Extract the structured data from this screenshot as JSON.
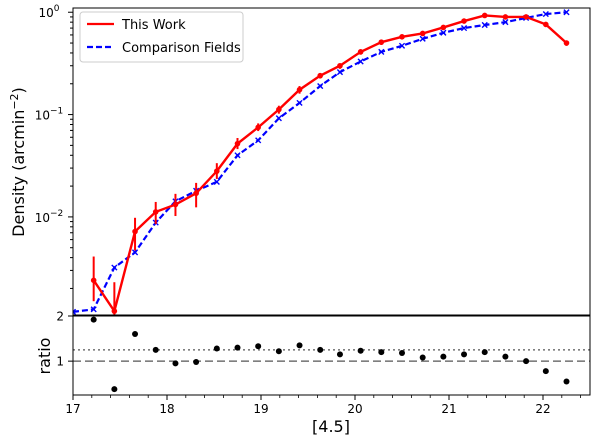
{
  "chart_data": [
    {
      "type": "line",
      "panel": "main",
      "ylabel": "Density (arcmin",
      "ylabel_sup": "−2",
      "ylabel_close": ")",
      "yscale": "log",
      "xlim": [
        17.0,
        22.5
      ],
      "ylim": [
        0.0011,
        1.1
      ],
      "yticks": [
        {
          "value": 0.01,
          "base": "10",
          "exp": "−2"
        },
        {
          "value": 0.1,
          "base": "10",
          "exp": "−1"
        },
        {
          "value": 1.0,
          "base": "10",
          "exp": "0"
        }
      ],
      "legend": {
        "position": "top-left"
      },
      "series": [
        {
          "name": "This Work",
          "color": "#ff0000",
          "linestyle": "solid",
          "marker": "dot",
          "x": [
            17.22,
            17.44,
            17.66,
            17.88,
            18.09,
            18.31,
            18.53,
            18.75,
            18.97,
            19.19,
            19.41,
            19.63,
            19.84,
            20.06,
            20.28,
            20.5,
            20.72,
            20.94,
            21.16,
            21.38,
            21.6,
            21.82,
            22.03,
            22.25
          ],
          "y": [
            0.0024,
            0.0012,
            0.0072,
            0.0112,
            0.0132,
            0.017,
            0.028,
            0.052,
            0.075,
            0.112,
            0.175,
            0.24,
            0.3,
            0.41,
            0.51,
            0.575,
            0.62,
            0.71,
            0.82,
            0.93,
            0.9,
            0.9,
            0.76,
            0.5
          ],
          "yerr_low": [
            0.0015,
            0.0011,
            0.0047,
            0.0085,
            0.0102,
            0.0124,
            0.0235,
            0.046,
            0.069,
            0.102,
            0.16,
            0.225,
            0.28,
            0.385,
            0.48,
            0.545,
            0.59,
            0.68,
            0.79,
            0.89,
            0.86,
            0.86,
            0.72,
            0.47
          ],
          "yerr_high": [
            0.0041,
            0.0023,
            0.0098,
            0.014,
            0.0168,
            0.0215,
            0.0335,
            0.059,
            0.082,
            0.122,
            0.19,
            0.255,
            0.315,
            0.43,
            0.535,
            0.6,
            0.65,
            0.74,
            0.85,
            0.96,
            0.94,
            0.94,
            0.8,
            0.53
          ]
        },
        {
          "name": "Comparison Fields",
          "color": "#0000ff",
          "linestyle": "dashed",
          "marker": "x",
          "x": [
            17.0,
            17.22,
            17.44,
            17.66,
            17.88,
            18.09,
            18.31,
            18.53,
            18.75,
            18.97,
            19.19,
            19.41,
            19.63,
            19.84,
            20.06,
            20.28,
            20.5,
            20.72,
            20.94,
            21.16,
            21.38,
            21.6,
            21.82,
            22.03,
            22.25
          ],
          "y": [
            0.00118,
            0.00125,
            0.0032,
            0.0045,
            0.0088,
            0.0142,
            0.018,
            0.022,
            0.04,
            0.056,
            0.092,
            0.13,
            0.19,
            0.26,
            0.33,
            0.41,
            0.47,
            0.55,
            0.63,
            0.7,
            0.75,
            0.8,
            0.88,
            0.96,
            1.0
          ]
        }
      ]
    },
    {
      "type": "scatter",
      "panel": "ratio",
      "ylabel": "ratio",
      "xlabel": "[4.5]",
      "xlim": [
        17.0,
        22.5
      ],
      "ylim": [
        0.25,
        2.0
      ],
      "xticks": [
        "17",
        "18",
        "19",
        "20",
        "21",
        "22"
      ],
      "yticks": [
        "1",
        "2"
      ],
      "reference_lines": [
        {
          "y": 1.0,
          "style": "dashed",
          "color": "#555555"
        },
        {
          "y": 1.25,
          "style": "dotted",
          "color": "#555555"
        }
      ],
      "series": [
        {
          "color": "#000000",
          "marker": "dot",
          "x": [
            17.22,
            17.44,
            17.66,
            17.88,
            18.09,
            18.31,
            18.53,
            18.75,
            18.97,
            19.19,
            19.41,
            19.63,
            19.84,
            20.06,
            20.28,
            20.5,
            20.72,
            20.94,
            21.16,
            21.38,
            21.6,
            21.82,
            22.03,
            22.25
          ],
          "y": [
            1.92,
            0.38,
            1.6,
            1.25,
            0.95,
            0.98,
            1.28,
            1.3,
            1.33,
            1.22,
            1.35,
            1.25,
            1.15,
            1.23,
            1.2,
            1.18,
            1.08,
            1.1,
            1.15,
            1.2,
            1.1,
            1.0,
            0.78,
            0.55
          ]
        }
      ]
    }
  ]
}
